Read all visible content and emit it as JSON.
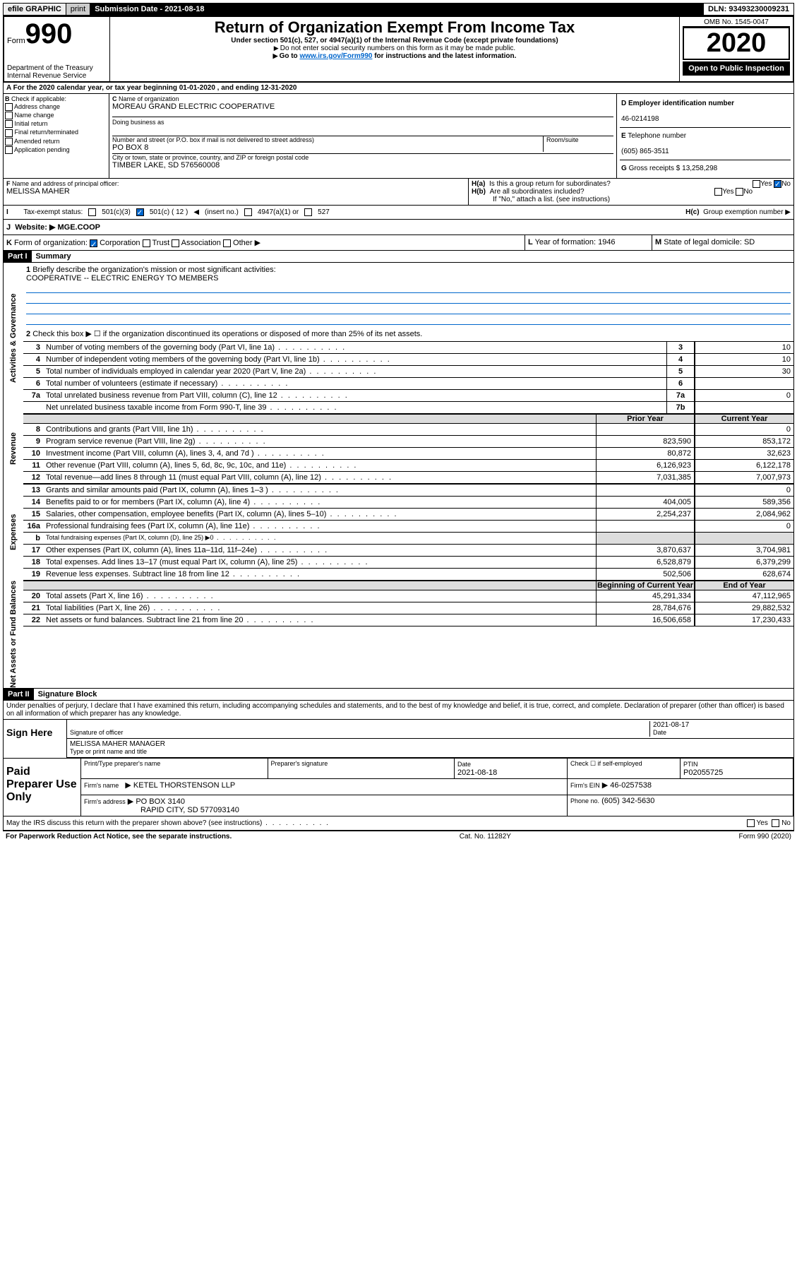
{
  "top": {
    "efile": "efile GRAPHIC",
    "print": "print",
    "submission": "Submission Date - 2021-08-18",
    "dln": "DLN: 93493230009231"
  },
  "header": {
    "form_word": "Form",
    "form_no": "990",
    "dept1": "Department of the Treasury",
    "dept2": "Internal Revenue Service",
    "title": "Return of Organization Exempt From Income Tax",
    "subtitle": "Under section 501(c), 527, or 4947(a)(1) of the Internal Revenue Code (except private foundations)",
    "note1": "Do not enter social security numbers on this form as it may be made public.",
    "note2_pre": "Go to ",
    "note2_link": "www.irs.gov/Form990",
    "note2_post": " for instructions and the latest information.",
    "omb": "OMB No. 1545-0047",
    "year": "2020",
    "open": "Open to Public Inspection"
  },
  "a_line": "For the 2020 calendar year, or tax year beginning 01-01-2020   , and ending 12-31-2020",
  "b": {
    "label": "Check if applicable:",
    "items": [
      "Address change",
      "Name change",
      "Initial return",
      "Final return/terminated",
      "Amended return",
      "Application pending"
    ]
  },
  "c": {
    "name_label": "Name of organization",
    "name": "MOREAU GRAND ELECTRIC COOPERATIVE",
    "dba_label": "Doing business as",
    "addr_label": "Number and street (or P.O. box if mail is not delivered to street address)",
    "room_label": "Room/suite",
    "addr": "PO BOX 8",
    "city_label": "City or town, state or province, country, and ZIP or foreign postal code",
    "city": "TIMBER LAKE, SD  576560008"
  },
  "d": {
    "label": "Employer identification number",
    "val": "46-0214198"
  },
  "e": {
    "label": "Telephone number",
    "val": "(605) 865-3511"
  },
  "g": {
    "label": "Gross receipts $",
    "val": "13,258,298"
  },
  "f": {
    "label": "Name and address of principal officer:",
    "val": "MELISSA MAHER"
  },
  "h": {
    "a": "Is this a group return for subordinates?",
    "b": "Are all subordinates included?",
    "b_note": "If \"No,\" attach a list. (see instructions)",
    "c": "Group exemption number"
  },
  "i": {
    "label": "Tax-exempt status:",
    "opts": [
      "501(c)(3)",
      "501(c) ( 12 )",
      "(insert no.)",
      "4947(a)(1) or",
      "527"
    ]
  },
  "j": {
    "label": "Website:",
    "val": "MGE.COOP"
  },
  "k": {
    "label": "Form of organization:",
    "opts": [
      "Corporation",
      "Trust",
      "Association",
      "Other"
    ]
  },
  "l": {
    "label": "Year of formation:",
    "val": "1946"
  },
  "m": {
    "label": "State of legal domicile:",
    "val": "SD"
  },
  "part1": {
    "header": "Part I",
    "title": "Summary",
    "line1_label": "Briefly describe the organization's mission or most significant activities:",
    "line1_val": "COOPERATIVE -- ELECTRIC ENERGY TO MEMBERS",
    "line2": "Check this box ▶ ☐  if the organization discontinued its operations or disposed of more than 25% of its net assets.",
    "vlabels": {
      "gov": "Activities & Governance",
      "rev": "Revenue",
      "exp": "Expenses",
      "net": "Net Assets or Fund Balances"
    },
    "gov_rows": [
      {
        "n": "3",
        "t": "Number of voting members of the governing body (Part VI, line 1a)",
        "c": "3",
        "v": "10"
      },
      {
        "n": "4",
        "t": "Number of independent voting members of the governing body (Part VI, line 1b)",
        "c": "4",
        "v": "10"
      },
      {
        "n": "5",
        "t": "Total number of individuals employed in calendar year 2020 (Part V, line 2a)",
        "c": "5",
        "v": "30"
      },
      {
        "n": "6",
        "t": "Total number of volunteers (estimate if necessary)",
        "c": "6",
        "v": ""
      },
      {
        "n": "7a",
        "t": "Total unrelated business revenue from Part VIII, column (C), line 12",
        "c": "7a",
        "v": "0"
      },
      {
        "n": "",
        "t": "Net unrelated business taxable income from Form 990-T, line 39",
        "c": "7b",
        "v": ""
      }
    ],
    "col_headers": {
      "prior": "Prior Year",
      "current": "Current Year",
      "boy": "Beginning of Current Year",
      "eoy": "End of Year"
    },
    "rev_rows": [
      {
        "n": "8",
        "t": "Contributions and grants (Part VIII, line 1h)",
        "p": "",
        "c": "0"
      },
      {
        "n": "9",
        "t": "Program service revenue (Part VIII, line 2g)",
        "p": "823,590",
        "c": "853,172"
      },
      {
        "n": "10",
        "t": "Investment income (Part VIII, column (A), lines 3, 4, and 7d )",
        "p": "80,872",
        "c": "32,623"
      },
      {
        "n": "11",
        "t": "Other revenue (Part VIII, column (A), lines 5, 6d, 8c, 9c, 10c, and 11e)",
        "p": "6,126,923",
        "c": "6,122,178"
      },
      {
        "n": "12",
        "t": "Total revenue—add lines 8 through 11 (must equal Part VIII, column (A), line 12)",
        "p": "7,031,385",
        "c": "7,007,973"
      }
    ],
    "exp_rows": [
      {
        "n": "13",
        "t": "Grants and similar amounts paid (Part IX, column (A), lines 1–3 )",
        "p": "",
        "c": "0"
      },
      {
        "n": "14",
        "t": "Benefits paid to or for members (Part IX, column (A), line 4)",
        "p": "404,005",
        "c": "589,356"
      },
      {
        "n": "15",
        "t": "Salaries, other compensation, employee benefits (Part IX, column (A), lines 5–10)",
        "p": "2,254,237",
        "c": "2,084,962"
      },
      {
        "n": "16a",
        "t": "Professional fundraising fees (Part IX, column (A), line 11e)",
        "p": "",
        "c": "0"
      },
      {
        "n": "b",
        "t": "Total fundraising expenses (Part IX, column (D), line 25) ▶0",
        "p": "grey",
        "c": "grey"
      },
      {
        "n": "17",
        "t": "Other expenses (Part IX, column (A), lines 11a–11d, 11f–24e)",
        "p": "3,870,637",
        "c": "3,704,981"
      },
      {
        "n": "18",
        "t": "Total expenses. Add lines 13–17 (must equal Part IX, column (A), line 25)",
        "p": "6,528,879",
        "c": "6,379,299"
      },
      {
        "n": "19",
        "t": "Revenue less expenses. Subtract line 18 from line 12",
        "p": "502,506",
        "c": "628,674"
      }
    ],
    "net_rows": [
      {
        "n": "20",
        "t": "Total assets (Part X, line 16)",
        "p": "45,291,334",
        "c": "47,112,965"
      },
      {
        "n": "21",
        "t": "Total liabilities (Part X, line 26)",
        "p": "28,784,676",
        "c": "29,882,532"
      },
      {
        "n": "22",
        "t": "Net assets or fund balances. Subtract line 21 from line 20",
        "p": "16,506,658",
        "c": "17,230,433"
      }
    ]
  },
  "part2": {
    "header": "Part II",
    "title": "Signature Block",
    "perjury": "Under penalties of perjury, I declare that I have examined this return, including accompanying schedules and statements, and to the best of my knowledge and belief, it is true, correct, and complete. Declaration of preparer (other than officer) is based on all information of which preparer has any knowledge.",
    "sign_here": "Sign Here",
    "sig_officer": "Signature of officer",
    "sig_date": "2021-08-17",
    "date_label": "Date",
    "officer_name": "MELISSA MAHER  MANAGER",
    "name_title_label": "Type or print name and title",
    "paid": "Paid Preparer Use Only",
    "prep_name_label": "Print/Type preparer's name",
    "prep_sig_label": "Preparer's signature",
    "prep_date_label": "Date",
    "prep_date": "2021-08-18",
    "self_emp": "Check ☐ if self-employed",
    "ptin_label": "PTIN",
    "ptin": "P02055725",
    "firm_name_label": "Firm's name",
    "firm_name": "KETEL THORSTENSON LLP",
    "firm_ein_label": "Firm's EIN",
    "firm_ein": "46-0257538",
    "firm_addr_label": "Firm's address",
    "firm_addr1": "PO BOX 3140",
    "firm_addr2": "RAPID CITY, SD  577093140",
    "phone_label": "Phone no.",
    "phone": "(605) 342-5630",
    "discuss": "May the IRS discuss this return with the preparer shown above? (see instructions)",
    "yes": "Yes",
    "no": "No"
  },
  "footer": {
    "pra": "For Paperwork Reduction Act Notice, see the separate instructions.",
    "cat": "Cat. No. 11282Y",
    "form": "Form 990 (2020)"
  }
}
